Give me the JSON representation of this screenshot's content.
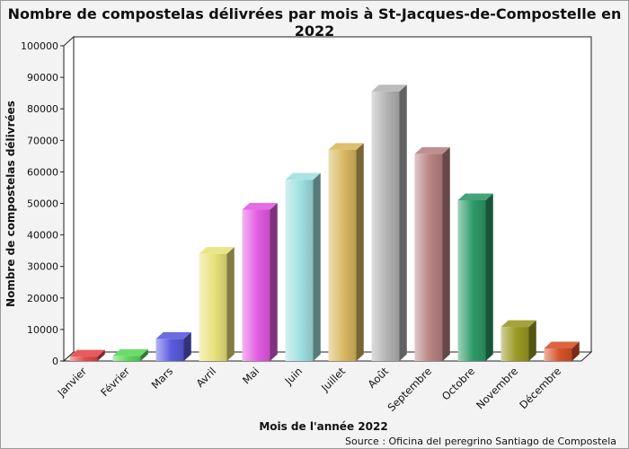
{
  "chart_data": {
    "type": "bar",
    "title": "Nombre de compostelas délivrées par mois à St-Jacques-de-Compostelle en 2022",
    "xlabel": "Mois de l'année 2022",
    "ylabel": "Nombre de compostelas délivrées",
    "source": "Source : Oficina del peregrino Santiago de Compostela",
    "categories": [
      "Janvier",
      "Février",
      "Mars",
      "Avril",
      "Mai",
      "Juin",
      "Juillet",
      "Août",
      "Septembre",
      "Octobre",
      "Novembre",
      "Décembre"
    ],
    "values": [
      1400,
      1600,
      7000,
      34000,
      48000,
      57500,
      67000,
      85500,
      65700,
      51000,
      10800,
      4000
    ],
    "ylim": [
      0,
      100000
    ],
    "yticks": [
      0,
      10000,
      20000,
      30000,
      40000,
      50000,
      60000,
      70000,
      80000,
      90000,
      100000
    ],
    "grid": false,
    "colors": [
      "#e34a4a",
      "#5ad85a",
      "#5b5be0",
      "#e8e27a",
      "#e35ce3",
      "#9fe0e0",
      "#d8b860",
      "#b3b3b3",
      "#b88383",
      "#2e9a68",
      "#9a9a25",
      "#d8532a"
    ]
  }
}
